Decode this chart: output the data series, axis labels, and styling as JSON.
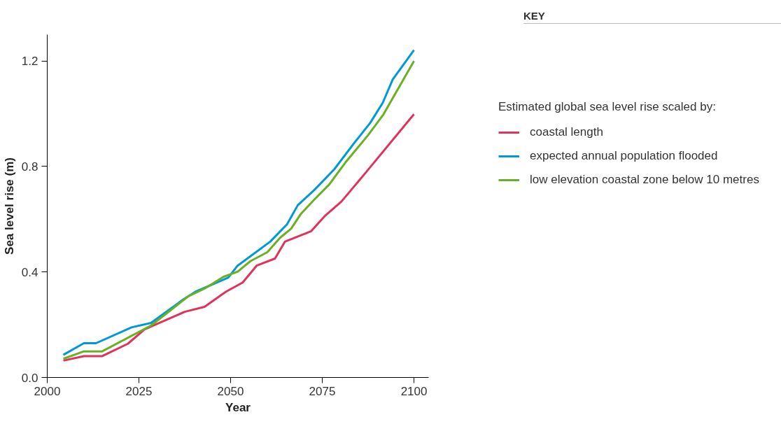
{
  "chart_data": {
    "type": "line",
    "xlabel": "Year",
    "ylabel": "Sea level rise (m)",
    "legend_title": "Estimated global sea level rise scaled by:",
    "annotations": [
      "KEY"
    ],
    "xlim": [
      2000,
      2104
    ],
    "xticks": [
      2000,
      2025,
      2050,
      2075,
      2100
    ],
    "ylim": [
      0,
      1.3
    ],
    "yticks": [
      {
        "value": 0,
        "label": "0.0"
      },
      0.4,
      0.8,
      1.2
    ],
    "grid": false,
    "legend": "right",
    "marker": "none",
    "line_style": "solid",
    "series": [
      {
        "name": "coastal length",
        "color": "#e0325a",
        "x": [
          2004.4,
          2010,
          2015,
          2022,
          2026.5,
          2031.7,
          2037.5,
          2042.9,
          2048.7,
          2053.3,
          2057.1,
          2062.1,
          2064.8,
          2071.9,
          2075.6,
          2080.2,
          2086.5,
          2100
        ],
        "values": [
          0.064,
          0.081,
          0.081,
          0.128,
          0.182,
          0.214,
          0.249,
          0.268,
          0.325,
          0.36,
          0.424,
          0.451,
          0.515,
          0.554,
          0.611,
          0.667,
          0.771,
          0.998
        ]
      },
      {
        "name": "expected annual population flooded",
        "color": "#0099d8",
        "x": [
          2004.4,
          2010,
          2013.3,
          2023,
          2028.3,
          2037.1,
          2040.4,
          2049.4,
          2051.9,
          2060.8,
          2065.4,
          2068.3,
          2072.9,
          2078.3,
          2083.7,
          2088.1,
          2091.5,
          2094.2,
          2100
        ],
        "values": [
          0.086,
          0.13,
          0.13,
          0.19,
          0.207,
          0.296,
          0.325,
          0.379,
          0.424,
          0.515,
          0.581,
          0.653,
          0.712,
          0.79,
          0.889,
          0.966,
          1.042,
          1.13,
          1.241
        ]
      },
      {
        "name": "low elevation coastal zone below 10 metres",
        "color": "#6ab023",
        "x": [
          2004.4,
          2010,
          2015,
          2028.3,
          2038.5,
          2042.9,
          2048.1,
          2051.9,
          2055.4,
          2060,
          2063.5,
          2066.5,
          2069.2,
          2072.5,
          2076.9,
          2081.3,
          2087.5,
          2091.7,
          2100
        ],
        "values": [
          0.071,
          0.099,
          0.099,
          0.197,
          0.308,
          0.337,
          0.382,
          0.401,
          0.441,
          0.475,
          0.53,
          0.564,
          0.621,
          0.67,
          0.732,
          0.815,
          0.919,
          0.998,
          1.2
        ]
      }
    ]
  }
}
